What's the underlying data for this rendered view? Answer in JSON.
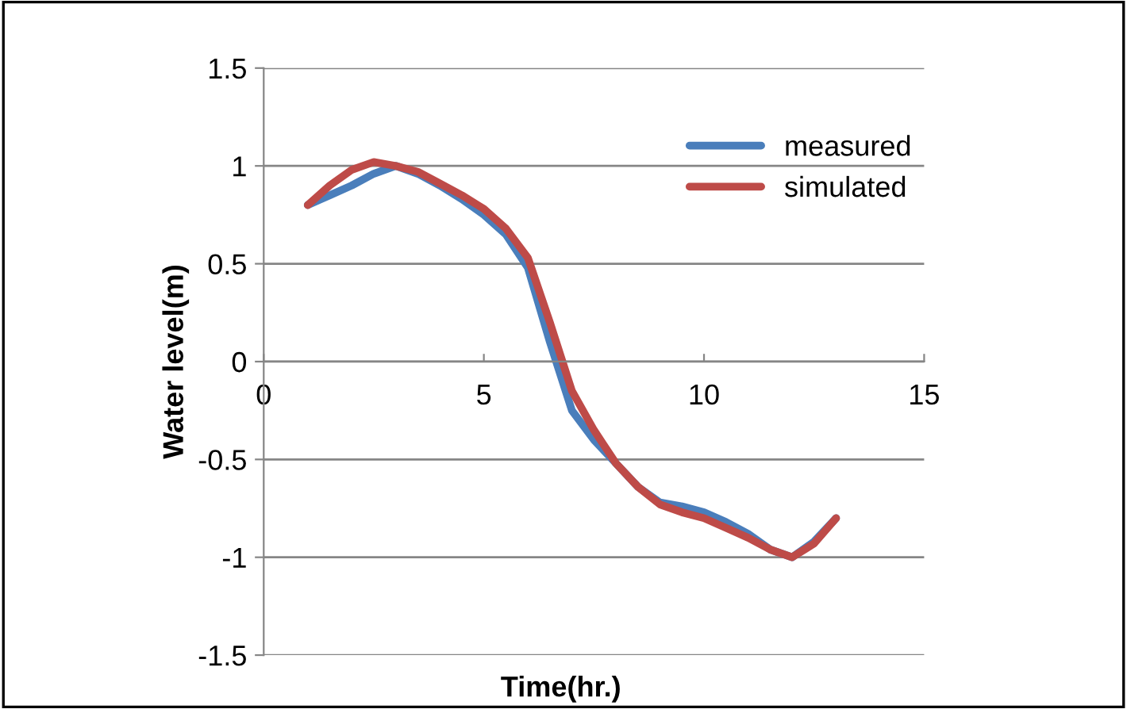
{
  "chart_data": {
    "type": "line",
    "xlabel": "Time(hr.)",
    "ylabel": "Water level(m)",
    "xlim": [
      0,
      15
    ],
    "ylim": [
      -1.5,
      1.5
    ],
    "xticks": [
      0,
      5,
      10,
      15
    ],
    "yticks": [
      -1.5,
      -1,
      -0.5,
      0,
      0.5,
      1,
      1.5
    ],
    "grid": "y",
    "legend": "top right",
    "marker": "none",
    "line_style": "solid",
    "x": [
      1,
      1.5,
      2,
      2.5,
      3,
      3.5,
      4,
      4.5,
      5,
      5.5,
      6,
      6.5,
      7,
      7.5,
      8,
      8.5,
      9,
      9.5,
      10,
      10.5,
      11,
      11.5,
      12,
      12.5,
      13
    ],
    "series": [
      {
        "name": "measured",
        "color": "#4a7ebb",
        "values": [
          0.8,
          0.85,
          0.9,
          0.96,
          1.0,
          0.96,
          0.9,
          0.83,
          0.75,
          0.65,
          0.48,
          0.1,
          -0.25,
          -0.4,
          -0.52,
          -0.64,
          -0.72,
          -0.74,
          -0.77,
          -0.82,
          -0.88,
          -0.96,
          -1.0,
          -0.92,
          -0.8
        ]
      },
      {
        "name": "simulated",
        "color": "#be4b48",
        "values": [
          0.8,
          0.9,
          0.98,
          1.02,
          1.0,
          0.97,
          0.91,
          0.85,
          0.78,
          0.68,
          0.53,
          0.2,
          -0.15,
          -0.35,
          -0.52,
          -0.64,
          -0.73,
          -0.77,
          -0.8,
          -0.85,
          -0.9,
          -0.96,
          -1.0,
          -0.93,
          -0.8
        ]
      }
    ]
  }
}
